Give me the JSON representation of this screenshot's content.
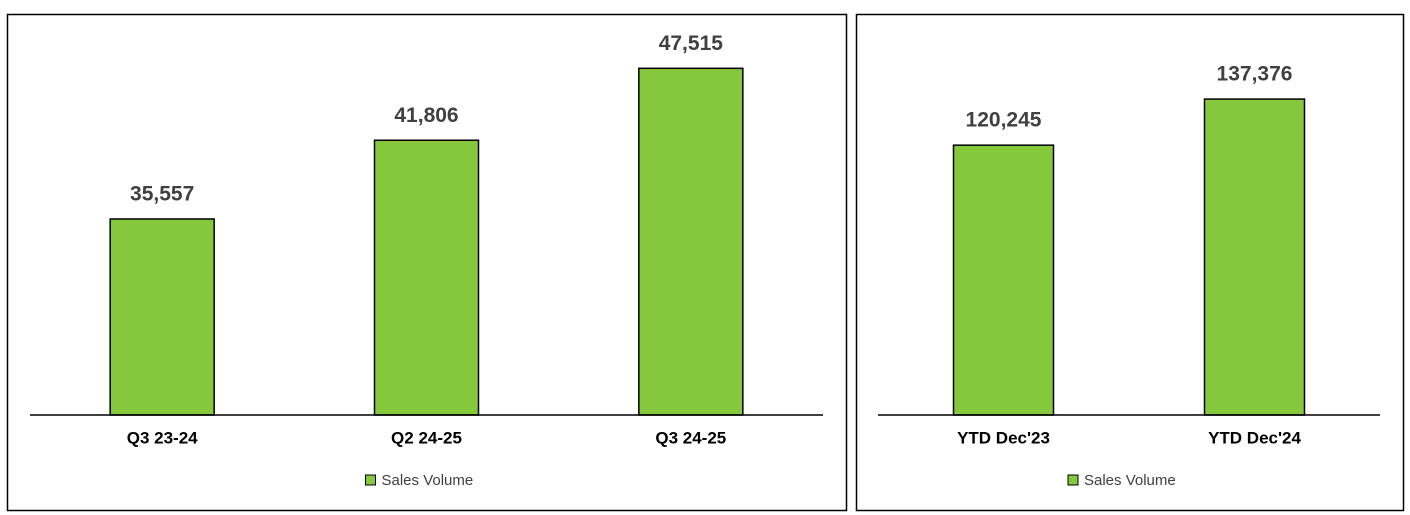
{
  "chart_data": [
    {
      "type": "bar",
      "categories": [
        "Q3 23-24",
        "Q2 24-25",
        "Q3 24-25"
      ],
      "series": [
        {
          "name": "Sales Volume",
          "color": "#86c83c",
          "values": [
            35557,
            41806,
            47515
          ],
          "value_labels": [
            "35,557",
            "41,806",
            "47,515"
          ]
        }
      ],
      "ylim": [
        20000,
        50000
      ],
      "legend": "bottom"
    },
    {
      "type": "bar",
      "categories": [
        "YTD Dec'23",
        "YTD Dec'24"
      ],
      "series": [
        {
          "name": "Sales Volume",
          "color": "#86c83c",
          "values": [
            120245,
            137376
          ],
          "value_labels": [
            "120,245",
            "137,376"
          ]
        }
      ],
      "ylim": [
        20000,
        140000
      ],
      "legend": "bottom"
    }
  ]
}
